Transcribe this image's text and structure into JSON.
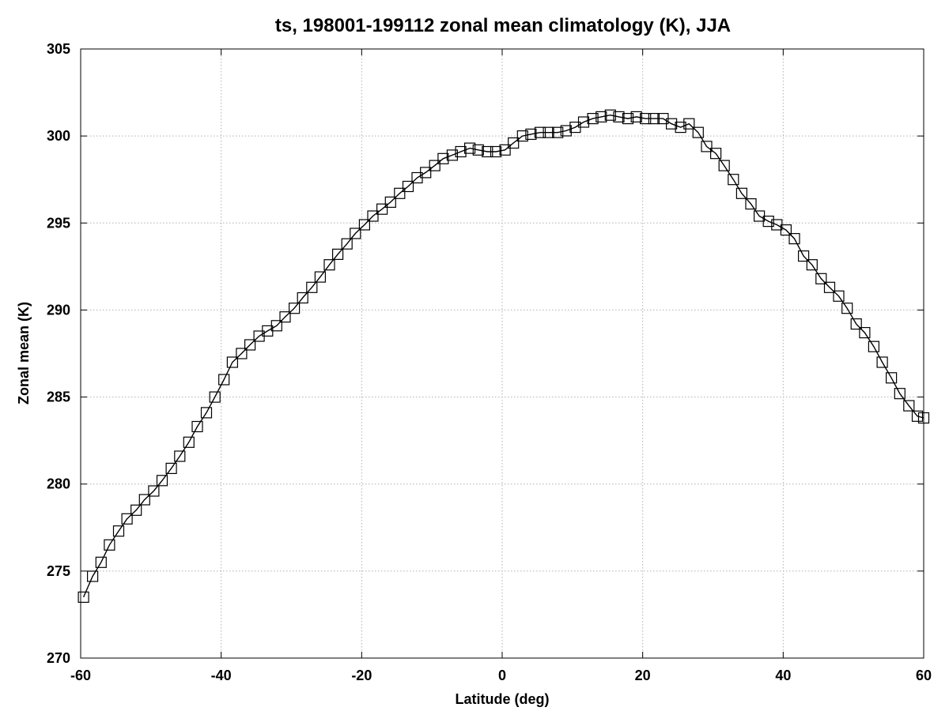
{
  "chart_data": {
    "type": "line",
    "title": "ts, 198001-199112 zonal mean climatology (K), JJA",
    "xlabel": "Latitude (deg)",
    "ylabel": "Zonal mean (K)",
    "xlim": [
      -60,
      60
    ],
    "ylim": [
      270,
      305
    ],
    "xticks": [
      -60,
      -40,
      -20,
      0,
      20,
      40,
      60
    ],
    "yticks": [
      270,
      275,
      280,
      285,
      290,
      295,
      300,
      305
    ],
    "grid": true,
    "marker": "square",
    "series": [
      {
        "x": [
          -59.6,
          -58.3,
          -57.1,
          -55.9,
          -54.6,
          -53.4,
          -52.1,
          -50.9,
          -49.6,
          -48.4,
          -47.1,
          -45.9,
          -44.6,
          -43.4,
          -42.1,
          -40.9,
          -39.6,
          -38.4,
          -37.1,
          -35.9,
          -34.6,
          -33.4,
          -32.1,
          -30.9,
          -29.6,
          -28.4,
          -27.1,
          -25.9,
          -24.6,
          -23.4,
          -22.1,
          -20.9,
          -19.6,
          -18.4,
          -17.1,
          -15.9,
          -14.6,
          -13.4,
          -12.1,
          -10.9,
          -9.6,
          -8.4,
          -7.1,
          -5.9,
          -4.6,
          -3.4,
          -2.1,
          -0.9,
          0.4,
          1.6,
          2.9,
          4.1,
          5.4,
          6.6,
          7.9,
          9.1,
          10.4,
          11.6,
          12.9,
          14.1,
          15.4,
          16.6,
          17.9,
          19.1,
          20.4,
          21.6,
          22.9,
          24.1,
          25.4,
          26.6,
          27.9,
          29.1,
          30.4,
          31.6,
          32.9,
          34.1,
          35.4,
          36.6,
          37.9,
          39.1,
          40.4,
          41.6,
          42.9,
          44.1,
          45.4,
          46.6,
          47.9,
          49.1,
          50.4,
          51.6,
          52.9,
          54.1,
          55.4,
          56.6,
          57.9,
          59.1,
          60.0
        ],
        "y": [
          273.5,
          274.7,
          275.5,
          276.5,
          277.3,
          278.0,
          278.5,
          279.1,
          279.6,
          280.2,
          280.9,
          281.6,
          282.4,
          283.3,
          284.1,
          285.0,
          286.0,
          287.0,
          287.5,
          288.0,
          288.5,
          288.8,
          289.1,
          289.6,
          290.1,
          290.7,
          291.3,
          291.9,
          292.6,
          293.2,
          293.8,
          294.4,
          294.9,
          295.4,
          295.8,
          296.2,
          296.7,
          297.1,
          297.6,
          297.9,
          298.3,
          298.7,
          298.9,
          299.1,
          299.3,
          299.2,
          299.1,
          299.1,
          299.2,
          299.6,
          300.0,
          300.1,
          300.2,
          300.2,
          300.2,
          300.3,
          300.5,
          300.8,
          301.0,
          301.1,
          301.2,
          301.1,
          301.0,
          301.1,
          301.0,
          301.0,
          301.0,
          300.7,
          300.5,
          300.7,
          300.2,
          299.4,
          299.0,
          298.3,
          297.5,
          296.7,
          296.1,
          295.4,
          295.1,
          294.9,
          294.6,
          294.1,
          293.1,
          292.6,
          291.8,
          291.3,
          290.8,
          290.1,
          289.2,
          288.7,
          287.9,
          287.0,
          286.1,
          285.2,
          284.5,
          283.9,
          283.8
        ]
      }
    ]
  }
}
